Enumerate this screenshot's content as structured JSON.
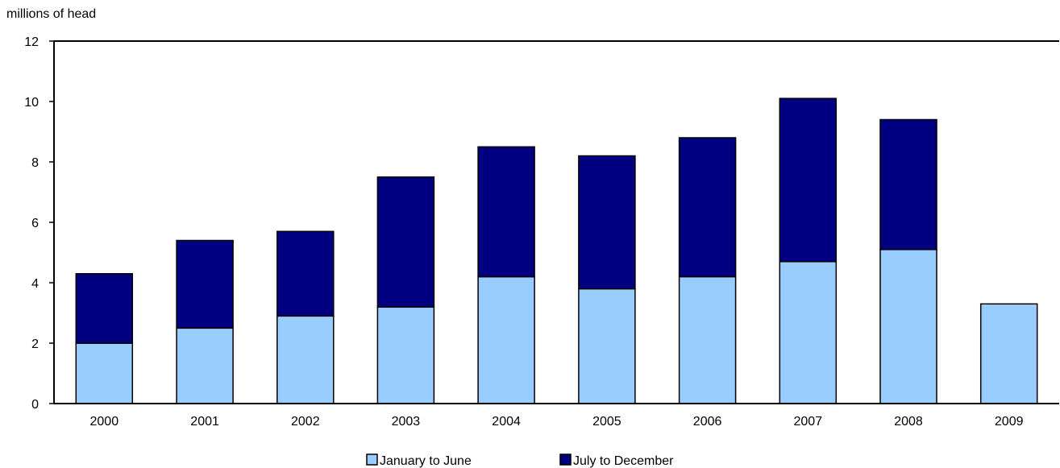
{
  "chart_data": {
    "type": "bar",
    "stacked": true,
    "title": "",
    "xlabel": "",
    "ylabel": "millions of head",
    "ylim": [
      0,
      12
    ],
    "yticks": [
      0,
      2,
      4,
      6,
      8,
      10,
      12
    ],
    "grid": false,
    "legend_position": "bottom",
    "categories": [
      "2000",
      "2001",
      "2002",
      "2003",
      "2004",
      "2005",
      "2006",
      "2007",
      "2008",
      "2009"
    ],
    "series": [
      {
        "name": "January to June",
        "color": "#99ccff",
        "values": [
          2.0,
          2.5,
          2.9,
          3.2,
          4.2,
          3.8,
          4.2,
          4.7,
          5.1,
          3.3
        ]
      },
      {
        "name": "July to December",
        "color": "#000080",
        "values": [
          2.3,
          2.9,
          2.8,
          4.3,
          4.3,
          4.4,
          4.6,
          5.4,
          4.3,
          0
        ]
      }
    ]
  }
}
